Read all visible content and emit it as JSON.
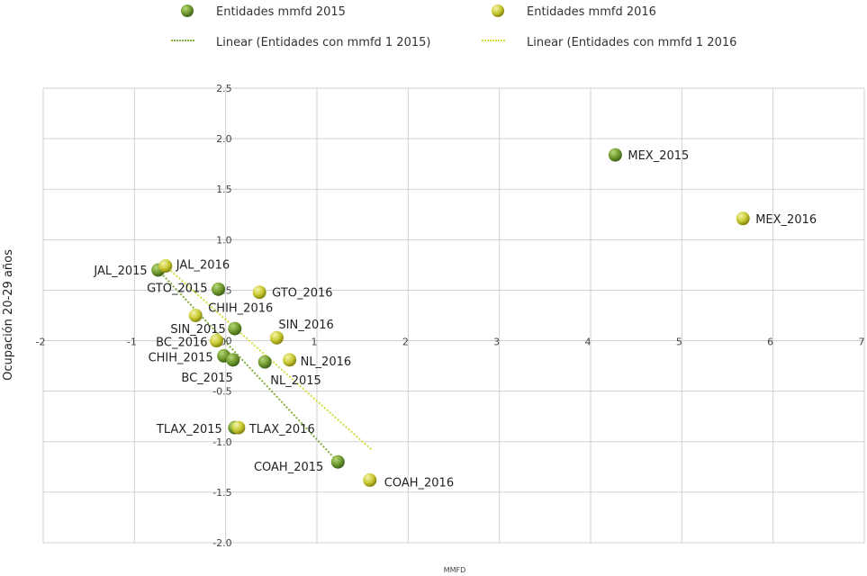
{
  "chart_data": {
    "type": "scatter",
    "title": "",
    "xlabel": "mmfd",
    "ylabel": "Ocupación 20-29 años",
    "xlim": [
      -2,
      7
    ],
    "ylim": [
      -2.0,
      2.5
    ],
    "x_ticks": [
      "-2",
      "-1",
      "0",
      "1",
      "2",
      "3",
      "4",
      "5",
      "6",
      "7"
    ],
    "y_ticks": [
      "2.5",
      "2.0",
      "1.5",
      "1.0",
      "0.5",
      "0",
      "-0.5",
      "-1.0",
      "-1.5",
      "-2.0"
    ],
    "grid": true,
    "legend_position": "top",
    "series": [
      {
        "name": "Entidades mmfd 2015",
        "color": "#6f9a2e",
        "points": [
          {
            "label": "MEX_2015",
            "x": 4.27,
            "y": 1.84
          },
          {
            "label": "JAL_2015",
            "x": -0.74,
            "y": 0.7
          },
          {
            "label": "GTO_2015",
            "x": -0.08,
            "y": 0.51
          },
          {
            "label": "SIN_2015",
            "x": 0.1,
            "y": 0.12
          },
          {
            "label": "CHIH_2015",
            "x": -0.02,
            "y": -0.15
          },
          {
            "label": "BC_2015",
            "x": 0.08,
            "y": -0.19
          },
          {
            "label": "NL_2015",
            "x": 0.43,
            "y": -0.21
          },
          {
            "label": "TLAX_2015",
            "x": 0.1,
            "y": -0.86
          },
          {
            "label": "COAH_2015",
            "x": 1.23,
            "y": -1.2
          }
        ]
      },
      {
        "name": "Entidades mmfd 2016",
        "color": "#c8c832",
        "points": [
          {
            "label": "MEX_2016",
            "x": 5.67,
            "y": 1.21
          },
          {
            "label": "JAL_2016",
            "x": -0.66,
            "y": 0.74
          },
          {
            "label": "GTO_2016",
            "x": 0.37,
            "y": 0.48
          },
          {
            "label": "CHIH_2016",
            "x": -0.33,
            "y": 0.25
          },
          {
            "label": "SIN_2016",
            "x": 0.56,
            "y": 0.03
          },
          {
            "label": "BC_2016",
            "x": -0.1,
            "y": 0.0
          },
          {
            "label": "NL_2016",
            "x": 0.7,
            "y": -0.19
          },
          {
            "label": "TLAX_2016",
            "x": 0.14,
            "y": -0.86
          },
          {
            "label": "COAH_2016",
            "x": 1.58,
            "y": -1.38
          }
        ]
      }
    ],
    "trendlines": [
      {
        "name": "Linear (Entidades con mmfd 1 2015)",
        "color": "#7fae3a",
        "from": [
          -0.74,
          0.7
        ],
        "to": [
          1.23,
          -1.2
        ]
      },
      {
        "name": "Linear (Entidades con mmfd 1 2016",
        "color": "#d4dc3c",
        "from": [
          -0.66,
          0.74
        ],
        "to": [
          1.6,
          -1.08
        ]
      }
    ]
  }
}
